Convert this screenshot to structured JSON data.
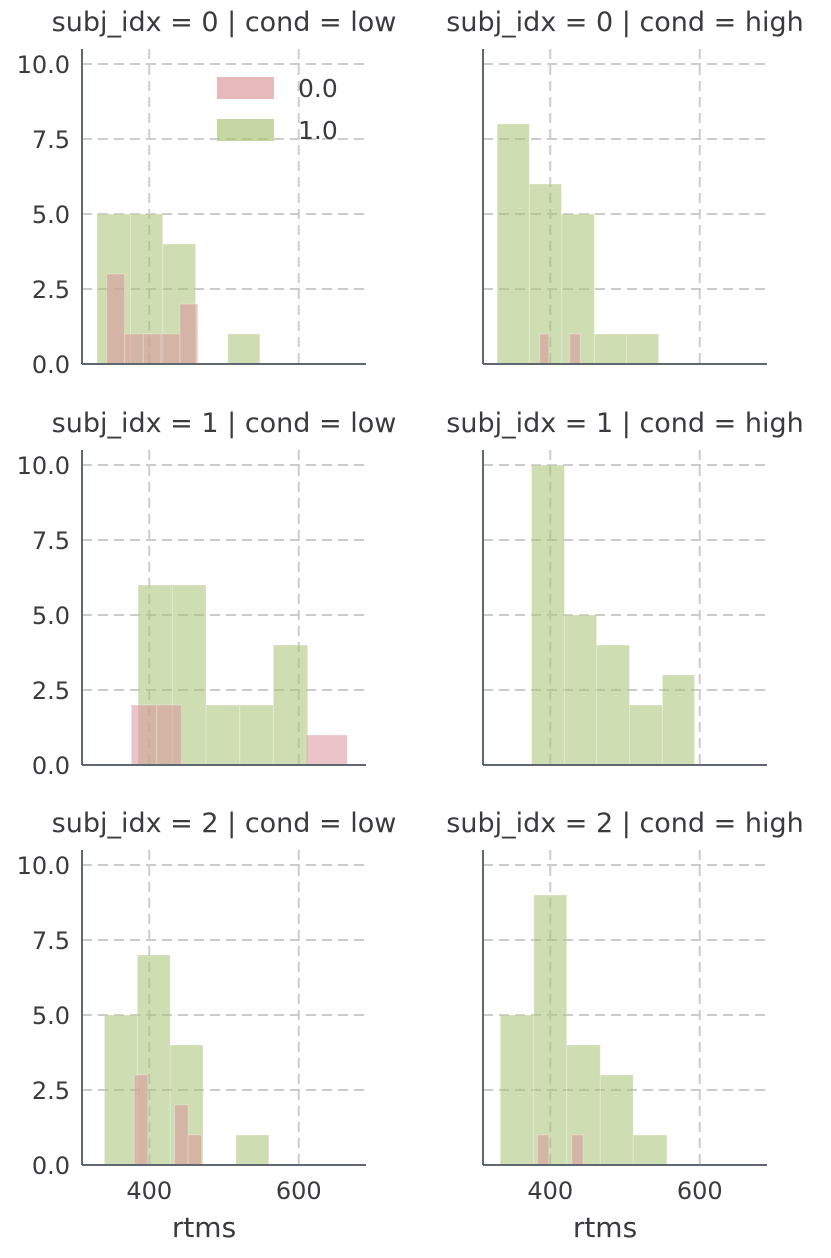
{
  "chart_data": {
    "type": "bar",
    "layout": {
      "rows": 3,
      "cols": 2
    },
    "xlabel": "rtms",
    "ylim": [
      0,
      10.5
    ],
    "xlim": [
      310,
      690
    ],
    "yticks": [
      0.0,
      2.5,
      5.0,
      7.5,
      10.0
    ],
    "ytick_labels": [
      "0.0",
      "2.5",
      "5.0",
      "7.5",
      "10.0"
    ],
    "xticks": [
      400,
      600
    ],
    "xtick_labels": [
      "400",
      "600"
    ],
    "grid": true,
    "legend": {
      "placement": "top-right",
      "entries": [
        {
          "name": "0.0",
          "color": "#d9939a"
        },
        {
          "name": "1.0",
          "color": "#a8c273"
        }
      ]
    },
    "panels": [
      {
        "title": "subj_idx = 0 | cond = low",
        "series": [
          {
            "name": "1.0",
            "color": "#a8c273",
            "bins": [
              [
                330,
                375,
                5
              ],
              [
                375,
                418,
                5
              ],
              [
                418,
                462,
                4
              ],
              [
                462,
                505,
                0
              ],
              [
                505,
                548,
                1
              ]
            ]
          },
          {
            "name": "0.0",
            "color": "#d9939a",
            "bins": [
              [
                343,
                367,
                3
              ],
              [
                367,
                392,
                1
              ],
              [
                392,
                416,
                1
              ],
              [
                416,
                441,
                1
              ],
              [
                441,
                465,
                2
              ]
            ]
          }
        ]
      },
      {
        "title": "subj_idx = 0 | cond = high",
        "series": [
          {
            "name": "1.0",
            "color": "#a8c273",
            "bins": [
              [
                329,
                372,
                8
              ],
              [
                372,
                415,
                6
              ],
              [
                415,
                459,
                5
              ],
              [
                459,
                502,
                1
              ],
              [
                502,
                545,
                1
              ]
            ]
          },
          {
            "name": "0.0",
            "color": "#d9939a",
            "bins": [
              [
                386,
                398,
                1
              ],
              [
                426,
                440,
                1
              ]
            ]
          }
        ]
      },
      {
        "title": "subj_idx = 1 | cond = low",
        "series": [
          {
            "name": "1.0",
            "color": "#a8c273",
            "bins": [
              [
                385,
                431,
                6
              ],
              [
                431,
                476,
                6
              ],
              [
                476,
                521,
                2
              ],
              [
                521,
                566,
                2
              ],
              [
                566,
                612,
                4
              ]
            ]
          },
          {
            "name": "0.0",
            "color": "#d9939a",
            "bins": [
              [
                376,
                410,
                2
              ],
              [
                410,
                443,
                2
              ],
              [
                610,
                665,
                1
              ]
            ]
          }
        ]
      },
      {
        "title": "subj_idx = 1 | cond = high",
        "series": [
          {
            "name": "1.0",
            "color": "#a8c273",
            "bins": [
              [
                375,
                419,
                10
              ],
              [
                419,
                462,
                5
              ],
              [
                462,
                506,
                4
              ],
              [
                506,
                550,
                2
              ],
              [
                550,
                593,
                3
              ]
            ]
          }
        ]
      },
      {
        "title": "subj_idx = 2 | cond = low",
        "series": [
          {
            "name": "1.0",
            "color": "#a8c273",
            "bins": [
              [
                340,
                384,
                5
              ],
              [
                384,
                428,
                7
              ],
              [
                428,
                472,
                4
              ],
              [
                472,
                516,
                0
              ],
              [
                516,
                560,
                1
              ]
            ]
          },
          {
            "name": "0.0",
            "color": "#d9939a",
            "bins": [
              [
                380,
                398,
                3
              ],
              [
                398,
                416,
                0
              ],
              [
                416,
                434,
                0
              ],
              [
                434,
                452,
                2
              ],
              [
                452,
                470,
                1
              ]
            ]
          }
        ]
      },
      {
        "title": "subj_idx = 2 | cond = high",
        "series": [
          {
            "name": "1.0",
            "color": "#a8c273",
            "bins": [
              [
                333,
                378,
                5
              ],
              [
                378,
                422,
                9
              ],
              [
                422,
                467,
                4
              ],
              [
                467,
                511,
                3
              ],
              [
                511,
                556,
                1
              ]
            ]
          },
          {
            "name": "0.0",
            "color": "#d9939a",
            "bins": [
              [
                383,
                398,
                1
              ],
              [
                429,
                444,
                1
              ]
            ]
          }
        ]
      }
    ]
  }
}
